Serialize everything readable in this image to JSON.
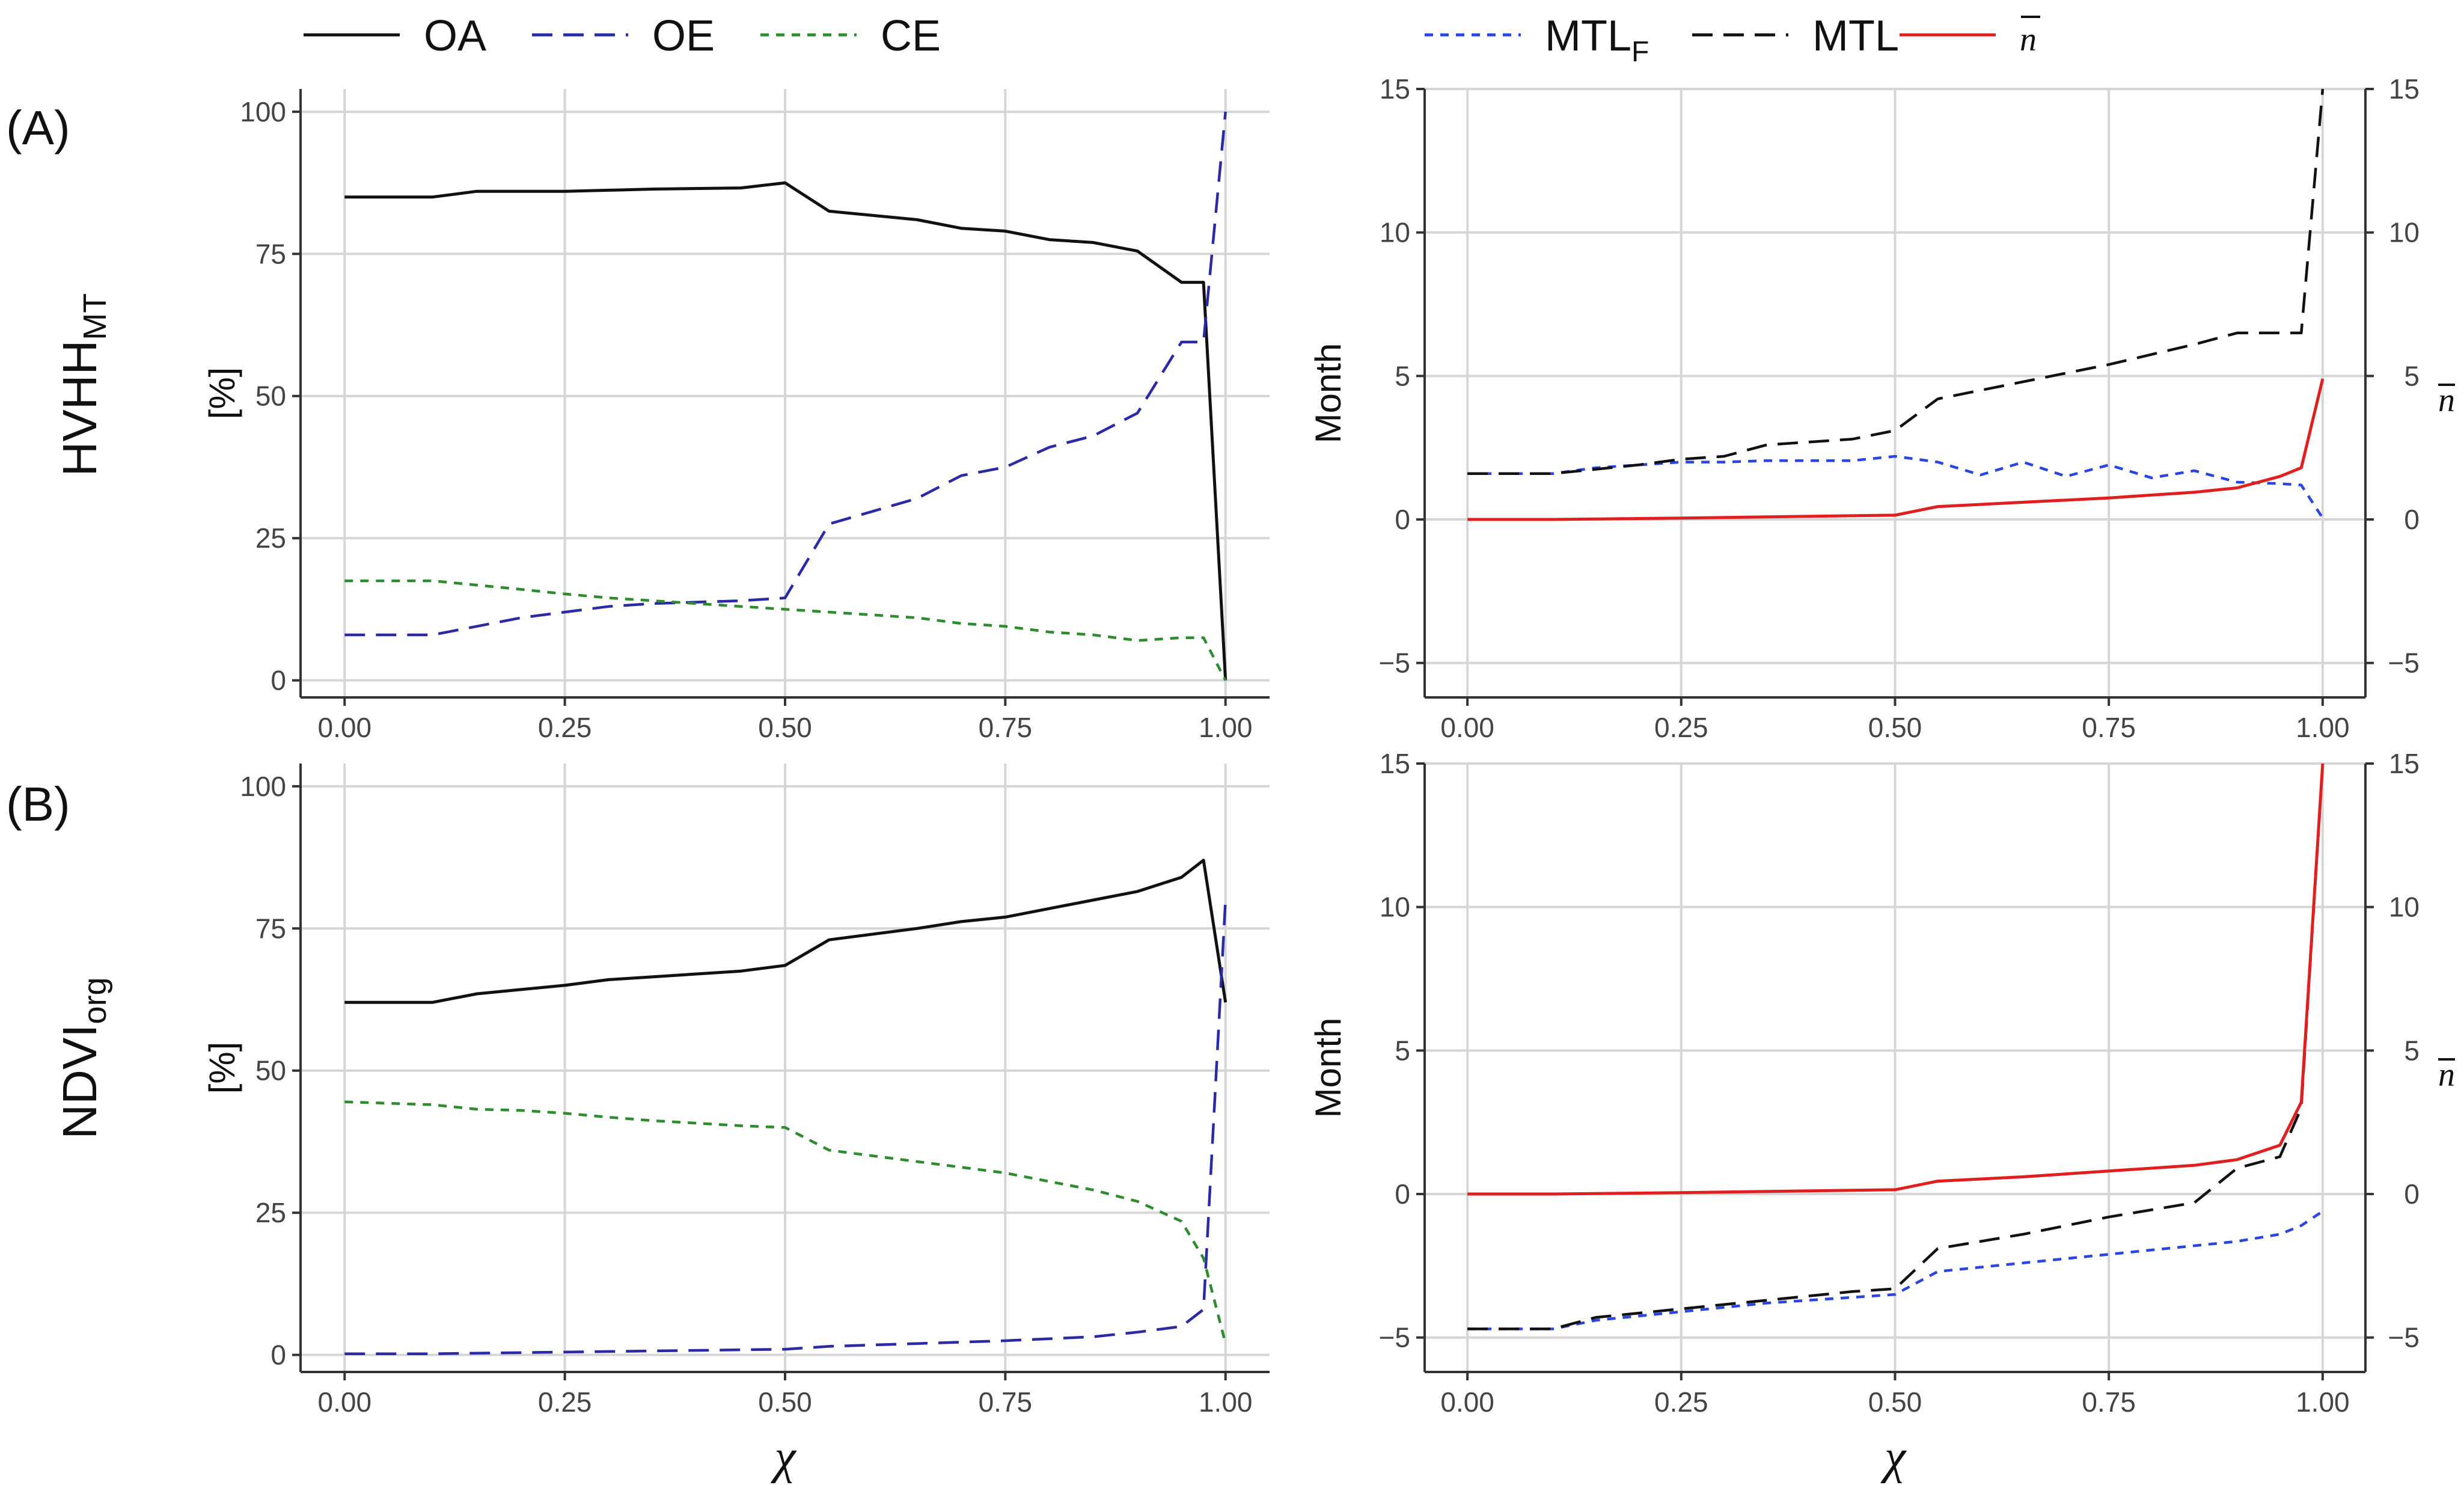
{
  "figure": {
    "row_labels": [
      {
        "main": "HVHH",
        "sub": "MT"
      },
      {
        "main": "NDVI",
        "sub": "org"
      }
    ],
    "xvar": "χ"
  },
  "legend": {
    "left": [
      {
        "label": "OA",
        "color": "#111111",
        "dash": "solid"
      },
      {
        "label": "OE",
        "color": "#2a2aa5",
        "dash": "long"
      },
      {
        "label": "CE",
        "color": "#2e8b2e",
        "dash": "short"
      }
    ],
    "right": [
      {
        "label": "MTL",
        "sub": "F",
        "color": "#2b45e0",
        "dash": "short"
      },
      {
        "label": "MTL",
        "sub": "",
        "color": "#111111",
        "dash": "long"
      },
      {
        "label": "n",
        "bar": true,
        "sub": "",
        "color": "#e02020",
        "dash": "solid"
      }
    ]
  },
  "chart_data": [
    {
      "panel": "(A)",
      "position": "top-left",
      "type": "line",
      "ylabel": "[%]",
      "xlabel": "",
      "xlim": [
        -0.05,
        1.05
      ],
      "ylim": [
        -3,
        104
      ],
      "xticks": [
        "0.00",
        "0.25",
        "0.50",
        "0.75",
        "1.00"
      ],
      "yticks": [
        "0",
        "25",
        "50",
        "75",
        "100"
      ],
      "series": [
        {
          "name": "OA",
          "color": "#111111",
          "dash": "solid",
          "x": [
            0,
            0.1,
            0.15,
            0.25,
            0.3,
            0.35,
            0.45,
            0.5,
            0.55,
            0.65,
            0.7,
            0.75,
            0.8,
            0.85,
            0.9,
            0.95,
            0.975,
            1.0
          ],
          "y": [
            85,
            85,
            86,
            86,
            86.2,
            86.4,
            86.6,
            87.5,
            82.5,
            81,
            79.5,
            79,
            77.5,
            77,
            75.5,
            70,
            70,
            0
          ]
        },
        {
          "name": "OE",
          "color": "#2a2aa5",
          "dash": "long",
          "x": [
            0,
            0.1,
            0.15,
            0.2,
            0.25,
            0.3,
            0.35,
            0.45,
            0.5,
            0.55,
            0.65,
            0.7,
            0.75,
            0.8,
            0.85,
            0.9,
            0.95,
            0.975,
            1.0
          ],
          "y": [
            8,
            8,
            9.5,
            11,
            12,
            13,
            13.5,
            14,
            14.5,
            27.5,
            32,
            36,
            37.5,
            41,
            43,
            47,
            59.5,
            59.5,
            100
          ]
        },
        {
          "name": "CE",
          "color": "#2e8b2e",
          "dash": "short",
          "x": [
            0,
            0.1,
            0.2,
            0.25,
            0.3,
            0.35,
            0.45,
            0.5,
            0.55,
            0.65,
            0.7,
            0.75,
            0.8,
            0.85,
            0.9,
            0.95,
            0.975,
            1.0
          ],
          "y": [
            17.5,
            17.5,
            16,
            15.2,
            14.5,
            14,
            13,
            12.5,
            12,
            11,
            10,
            9.5,
            8.5,
            8,
            7,
            7.5,
            7.5,
            0
          ]
        }
      ]
    },
    {
      "panel": "",
      "position": "top-right",
      "type": "line",
      "ylabel": "Month",
      "xlabel": "",
      "y2label": "n",
      "xlim": [
        -0.05,
        1.05
      ],
      "ylim": [
        -6.2,
        15
      ],
      "xticks": [
        "0.00",
        "0.25",
        "0.50",
        "0.75",
        "1.00"
      ],
      "yticks": [
        "−5",
        "0",
        "5",
        "10",
        "15"
      ],
      "series": [
        {
          "name": "MTL_F",
          "color": "#2b45e0",
          "dash": "short",
          "x": [
            0,
            0.1,
            0.15,
            0.2,
            0.25,
            0.3,
            0.35,
            0.45,
            0.5,
            0.55,
            0.6,
            0.65,
            0.7,
            0.75,
            0.8,
            0.85,
            0.9,
            0.95,
            0.975,
            1.0
          ],
          "y": [
            1.6,
            1.6,
            1.8,
            1.9,
            2.0,
            2.0,
            2.05,
            2.05,
            2.2,
            2.0,
            1.55,
            2.0,
            1.5,
            1.9,
            1.45,
            1.7,
            1.3,
            1.25,
            1.2,
            0.05
          ]
        },
        {
          "name": "MTL",
          "color": "#111111",
          "dash": "long",
          "x": [
            0,
            0.1,
            0.2,
            0.25,
            0.3,
            0.35,
            0.45,
            0.5,
            0.55,
            0.65,
            0.75,
            0.85,
            0.9,
            0.95,
            0.975,
            1.0
          ],
          "y": [
            1.6,
            1.6,
            1.9,
            2.1,
            2.2,
            2.6,
            2.8,
            3.1,
            4.2,
            4.8,
            5.4,
            6.1,
            6.5,
            6.5,
            6.5,
            15
          ]
        },
        {
          "name": "n",
          "color": "#e02020",
          "dash": "solid",
          "x": [
            0,
            0.1,
            0.25,
            0.5,
            0.55,
            0.65,
            0.75,
            0.85,
            0.9,
            0.95,
            0.975,
            1.0
          ],
          "y": [
            0,
            0,
            0.05,
            0.15,
            0.45,
            0.6,
            0.75,
            0.95,
            1.1,
            1.5,
            1.8,
            4.9
          ]
        }
      ]
    },
    {
      "panel": "(B)",
      "position": "bottom-left",
      "type": "line",
      "ylabel": "[%]",
      "xlabel": "χ",
      "xlim": [
        -0.05,
        1.05
      ],
      "ylim": [
        -3,
        104
      ],
      "xticks": [
        "0.00",
        "0.25",
        "0.50",
        "0.75",
        "1.00"
      ],
      "yticks": [
        "0",
        "25",
        "50",
        "75",
        "100"
      ],
      "series": [
        {
          "name": "OA",
          "color": "#111111",
          "dash": "solid",
          "x": [
            0,
            0.1,
            0.15,
            0.25,
            0.3,
            0.35,
            0.45,
            0.5,
            0.55,
            0.65,
            0.7,
            0.75,
            0.8,
            0.85,
            0.9,
            0.95,
            0.975,
            1.0
          ],
          "y": [
            62,
            62,
            63.5,
            65,
            66,
            66.5,
            67.5,
            68.5,
            73,
            75,
            76.2,
            77,
            78.5,
            80,
            81.5,
            84,
            87,
            62
          ]
        },
        {
          "name": "OE",
          "color": "#2a2aa5",
          "dash": "long",
          "x": [
            0,
            0.1,
            0.25,
            0.5,
            0.55,
            0.65,
            0.75,
            0.85,
            0.9,
            0.95,
            0.975,
            1.0
          ],
          "y": [
            0.2,
            0.2,
            0.5,
            1,
            1.5,
            2,
            2.5,
            3.2,
            4,
            5,
            8,
            80
          ]
        },
        {
          "name": "CE",
          "color": "#2e8b2e",
          "dash": "short",
          "x": [
            0,
            0.1,
            0.15,
            0.2,
            0.25,
            0.3,
            0.35,
            0.45,
            0.5,
            0.55,
            0.65,
            0.7,
            0.75,
            0.8,
            0.85,
            0.9,
            0.95,
            0.975,
            1.0
          ],
          "y": [
            44.5,
            44,
            43.2,
            43,
            42.5,
            41.8,
            41.2,
            40.3,
            40,
            36,
            34,
            33,
            32,
            30.5,
            29,
            27,
            23.5,
            17,
            2
          ]
        }
      ]
    },
    {
      "panel": "",
      "position": "bottom-right",
      "type": "line",
      "ylabel": "Month",
      "xlabel": "χ",
      "y2label": "n",
      "xlim": [
        -0.05,
        1.05
      ],
      "ylim": [
        -6.2,
        15
      ],
      "xticks": [
        "0.00",
        "0.25",
        "0.50",
        "0.75",
        "1.00"
      ],
      "yticks": [
        "−5",
        "0",
        "5",
        "10",
        "15"
      ],
      "series": [
        {
          "name": "MTL_F",
          "color": "#2b45e0",
          "dash": "short",
          "x": [
            0,
            0.1,
            0.15,
            0.25,
            0.35,
            0.45,
            0.5,
            0.55,
            0.65,
            0.75,
            0.85,
            0.9,
            0.95,
            0.975,
            1.0
          ],
          "y": [
            -4.7,
            -4.7,
            -4.4,
            -4.1,
            -3.8,
            -3.6,
            -3.5,
            -2.7,
            -2.4,
            -2.1,
            -1.8,
            -1.65,
            -1.4,
            -1.1,
            -0.6
          ]
        },
        {
          "name": "MTL",
          "color": "#111111",
          "dash": "long",
          "x": [
            0,
            0.1,
            0.15,
            0.25,
            0.35,
            0.45,
            0.5,
            0.55,
            0.65,
            0.75,
            0.85,
            0.9,
            0.95,
            0.975,
            1.0
          ],
          "y": [
            -4.7,
            -4.7,
            -4.3,
            -4.0,
            -3.7,
            -3.4,
            -3.3,
            -1.9,
            -1.4,
            -0.8,
            -0.3,
            0.9,
            1.3,
            3.0,
            15
          ]
        },
        {
          "name": "n",
          "color": "#e02020",
          "dash": "solid",
          "x": [
            0,
            0.1,
            0.25,
            0.5,
            0.55,
            0.65,
            0.75,
            0.85,
            0.9,
            0.95,
            0.975,
            1.0
          ],
          "y": [
            0,
            0,
            0.05,
            0.15,
            0.45,
            0.6,
            0.8,
            1.0,
            1.2,
            1.7,
            3.2,
            15
          ]
        }
      ]
    }
  ]
}
